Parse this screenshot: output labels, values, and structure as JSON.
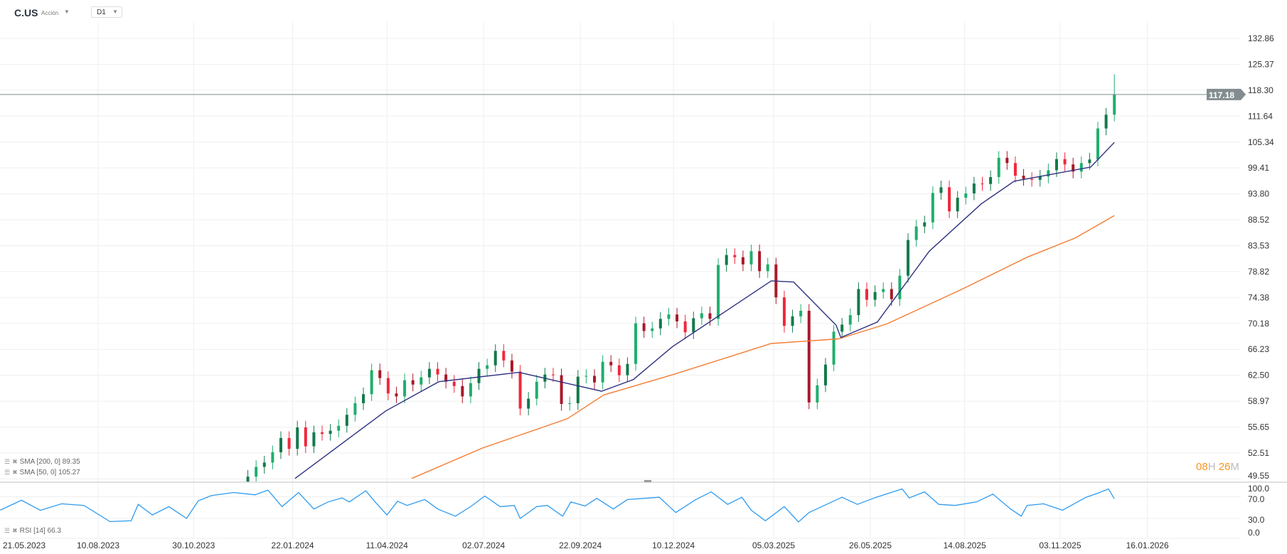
{
  "header": {
    "symbol": "C.US",
    "instrument_type": "Acción",
    "timeframe": "D1",
    "caret_icon": "caret-down-icon"
  },
  "countdown": {
    "hours": "08",
    "hours_unit": "H",
    "minutes": "26",
    "minutes_unit": "M"
  },
  "legends": {
    "sma200": {
      "label": "SMA [200,  0] 89.35"
    },
    "sma50": {
      "label": "SMA [50, 0] 105.27"
    },
    "rsi": {
      "label": "RSI  [14]  66.3"
    }
  },
  "colors": {
    "up": "#1fae6e",
    "up_dark": "#137a4a",
    "down": "#f0283c",
    "down_dark": "#a8192a",
    "sma50": "#2e3180",
    "sma200": "#f47c30",
    "rsi": "#2f9bf0",
    "price_line": "#7d8a8c",
    "price_tag": "#838d90",
    "grid": "#efefef"
  },
  "chart_data": [
    {
      "type": "candlestick",
      "scale": "log",
      "grid": true,
      "ylim": [
        49.55,
        132.86
      ],
      "y_ticks": [
        "132.86",
        "125.37",
        "118.30",
        "111.64",
        "105.34",
        "99.41",
        "93.80",
        "88.52",
        "83.53",
        "78.82",
        "74.38",
        "70.18",
        "66.23",
        "62.50",
        "58.97",
        "55.65",
        "52.51",
        "49.55"
      ],
      "x_ticks": [
        "21.05.2023",
        "10.08.2023",
        "30.10.2023",
        "22.01.2024",
        "11.04.2024",
        "02.07.2024",
        "22.09.2024",
        "10.12.2024",
        "05.03.2025",
        "26.05.2025",
        "14.08.2025",
        "03.11.2025",
        "16.01.2026"
      ],
      "last_price": "117.18",
      "last_high": 122.6,
      "weekly_close": [
        [
          "2023-12-15",
          49.8
        ],
        [
          "2023-12-22",
          50.9
        ],
        [
          "2023-12-29",
          51.4
        ],
        [
          "2024-01-05",
          52.6
        ],
        [
          "2024-01-12",
          54.3
        ],
        [
          "2024-01-19",
          53.0
        ],
        [
          "2024-01-26",
          55.6
        ],
        [
          "2024-02-02",
          53.3
        ],
        [
          "2024-02-09",
          55.0
        ],
        [
          "2024-02-16",
          54.8
        ],
        [
          "2024-02-23",
          55.2
        ],
        [
          "2024-03-01",
          55.8
        ],
        [
          "2024-03-08",
          57.2
        ],
        [
          "2024-03-15",
          58.7
        ],
        [
          "2024-03-22",
          59.9
        ],
        [
          "2024-03-29",
          63.2
        ],
        [
          "2024-04-05",
          62.1
        ],
        [
          "2024-04-12",
          60.0
        ],
        [
          "2024-04-19",
          59.6
        ],
        [
          "2024-04-26",
          61.8
        ],
        [
          "2024-05-03",
          61.2
        ],
        [
          "2024-05-10",
          62.2
        ],
        [
          "2024-05-17",
          63.4
        ],
        [
          "2024-05-24",
          62.6
        ],
        [
          "2024-05-31",
          61.6
        ],
        [
          "2024-06-07",
          61.0
        ],
        [
          "2024-06-14",
          59.6
        ],
        [
          "2024-06-21",
          61.4
        ],
        [
          "2024-06-28",
          63.4
        ],
        [
          "2024-07-05",
          63.9
        ],
        [
          "2024-07-12",
          66.0
        ],
        [
          "2024-07-19",
          64.6
        ],
        [
          "2024-07-26",
          63.0
        ],
        [
          "2024-08-02",
          58.0
        ],
        [
          "2024-08-09",
          59.3
        ],
        [
          "2024-08-16",
          61.6
        ],
        [
          "2024-08-23",
          62.6
        ],
        [
          "2024-08-30",
          62.5
        ],
        [
          "2024-09-06",
          58.6
        ],
        [
          "2024-09-13",
          58.7
        ],
        [
          "2024-09-20",
          62.3
        ],
        [
          "2024-09-27",
          62.4
        ],
        [
          "2024-10-04",
          61.5
        ],
        [
          "2024-10-11",
          64.4
        ],
        [
          "2024-10-18",
          63.9
        ],
        [
          "2024-10-25",
          62.5
        ],
        [
          "2024-11-01",
          64.1
        ],
        [
          "2024-11-08",
          70.2
        ],
        [
          "2024-11-15",
          69.0
        ],
        [
          "2024-11-22",
          69.4
        ],
        [
          "2024-11-29",
          70.9
        ],
        [
          "2024-12-06",
          71.6
        ],
        [
          "2024-12-13",
          70.5
        ],
        [
          "2024-12-20",
          68.8
        ],
        [
          "2024-12-27",
          71.0
        ],
        [
          "2025-01-03",
          71.8
        ],
        [
          "2025-01-10",
          70.9
        ],
        [
          "2025-01-17",
          80.0
        ],
        [
          "2025-01-24",
          81.8
        ],
        [
          "2025-01-31",
          81.4
        ],
        [
          "2025-02-07",
          80.1
        ],
        [
          "2025-02-14",
          82.5
        ],
        [
          "2025-02-21",
          78.9
        ],
        [
          "2025-02-28",
          80.1
        ],
        [
          "2025-03-07",
          74.4
        ],
        [
          "2025-03-14",
          69.8
        ],
        [
          "2025-03-21",
          71.3
        ],
        [
          "2025-03-28",
          72.2
        ],
        [
          "2025-04-04",
          58.8
        ],
        [
          "2025-04-11",
          61.1
        ],
        [
          "2025-04-18",
          64.0
        ],
        [
          "2025-04-25",
          68.9
        ],
        [
          "2025-05-02",
          70.0
        ],
        [
          "2025-05-09",
          71.5
        ],
        [
          "2025-05-16",
          75.8
        ],
        [
          "2025-05-23",
          74.0
        ],
        [
          "2025-05-30",
          75.3
        ],
        [
          "2025-06-06",
          75.8
        ],
        [
          "2025-06-13",
          74.1
        ],
        [
          "2025-06-20",
          78.1
        ],
        [
          "2025-06-27",
          84.6
        ],
        [
          "2025-07-04",
          87.2
        ],
        [
          "2025-07-11",
          88.0
        ],
        [
          "2025-07-18",
          94.0
        ],
        [
          "2025-07-25",
          95.2
        ],
        [
          "2025-08-01",
          90.2
        ],
        [
          "2025-08-08",
          93.0
        ],
        [
          "2025-08-15",
          93.9
        ],
        [
          "2025-08-22",
          96.0
        ],
        [
          "2025-08-29",
          95.9
        ],
        [
          "2025-09-05",
          97.4
        ],
        [
          "2025-09-12",
          101.7
        ],
        [
          "2025-09-19",
          100.5
        ],
        [
          "2025-09-26",
          97.7
        ],
        [
          "2025-10-03",
          97.0
        ],
        [
          "2025-10-10",
          96.8
        ],
        [
          "2025-10-17",
          97.5
        ],
        [
          "2025-10-24",
          98.9
        ],
        [
          "2025-10-31",
          101.4
        ],
        [
          "2025-11-07",
          100.2
        ],
        [
          "2025-11-14",
          98.6
        ],
        [
          "2025-11-21",
          100.5
        ],
        [
          "2025-11-28",
          101.3
        ],
        [
          "2025-12-05",
          108.6
        ],
        [
          "2025-12-12",
          112.0
        ],
        [
          "2025-12-19",
          117.18
        ]
      ],
      "series": [
        {
          "name": "SMA [200,  0]",
          "points": [
            [
              "2024-05-02",
              49.6
            ],
            [
              "2024-07-01",
              53.1
            ],
            [
              "2024-09-11",
              56.7
            ],
            [
              "2024-10-12",
              59.8
            ],
            [
              "2024-12-10",
              62.6
            ],
            [
              "2025-03-03",
              67.1
            ],
            [
              "2025-04-29",
              67.8
            ],
            [
              "2025-06-09",
              70.1
            ],
            [
              "2025-08-11",
              75.7
            ],
            [
              "2025-10-06",
              81.4
            ],
            [
              "2025-11-16",
              85.0
            ],
            [
              "2025-12-19",
              89.35
            ]
          ]
        },
        {
          "name": "SMA [50, 0]",
          "points": [
            [
              "2024-01-24",
              49.6
            ],
            [
              "2024-04-10",
              57.7
            ],
            [
              "2024-05-25",
              61.6
            ],
            [
              "2024-08-01",
              62.9
            ],
            [
              "2024-10-10",
              60.3
            ],
            [
              "2024-11-06",
              61.9
            ],
            [
              "2024-12-09",
              66.6
            ],
            [
              "2025-03-03",
              77.2
            ],
            [
              "2025-03-22",
              77.0
            ],
            [
              "2025-04-27",
              69.9
            ],
            [
              "2025-05-01",
              68.0
            ],
            [
              "2025-06-01",
              70.4
            ],
            [
              "2025-07-15",
              82.5
            ],
            [
              "2025-08-28",
              91.7
            ],
            [
              "2025-09-25",
              96.5
            ],
            [
              "2025-11-29",
              99.6
            ],
            [
              "2025-12-19",
              105.27
            ]
          ]
        }
      ]
    },
    {
      "type": "line",
      "ylim": [
        0,
        100
      ],
      "y_ticks": [
        "100.0",
        "70.0",
        "30.0",
        "0.0"
      ],
      "series": [
        {
          "name": "RSI  [14]",
          "points": [
            [
              "2023-05-19",
              45.2
            ],
            [
              "2023-06-06",
              63.5
            ],
            [
              "2023-06-22",
              45
            ],
            [
              "2023-07-10",
              57
            ],
            [
              "2023-07-29",
              54
            ],
            [
              "2023-08-20",
              24.3
            ],
            [
              "2023-09-07",
              25.7
            ],
            [
              "2023-09-13",
              56
            ],
            [
              "2023-09-25",
              36.5
            ],
            [
              "2023-10-09",
              51.7
            ],
            [
              "2023-10-24",
              30
            ],
            [
              "2023-11-03",
              62.6
            ],
            [
              "2023-11-14",
              72
            ],
            [
              "2023-12-03",
              77.8
            ],
            [
              "2023-12-21",
              73.5
            ],
            [
              "2024-01-01",
              82.2
            ],
            [
              "2024-01-13",
              51.7
            ],
            [
              "2024-01-27",
              77.8
            ],
            [
              "2024-02-09",
              47.4
            ],
            [
              "2024-02-21",
              60.4
            ],
            [
              "2024-03-04",
              67.8
            ],
            [
              "2024-03-10",
              60.4
            ],
            [
              "2024-03-24",
              80.9
            ],
            [
              "2024-04-01",
              60.4
            ],
            [
              "2024-04-11",
              36.5
            ],
            [
              "2024-04-20",
              61.7
            ],
            [
              "2024-04-28",
              54
            ],
            [
              "2024-05-13",
              64.8
            ],
            [
              "2024-05-24",
              47.4
            ],
            [
              "2024-06-08",
              34.3
            ],
            [
              "2024-06-21",
              51.7
            ],
            [
              "2024-07-03",
              71.3
            ],
            [
              "2024-07-16",
              51.7
            ],
            [
              "2024-07-28",
              54
            ],
            [
              "2024-08-02",
              30
            ],
            [
              "2024-08-16",
              51.7
            ],
            [
              "2024-08-25",
              54
            ],
            [
              "2024-09-07",
              34.3
            ],
            [
              "2024-09-14",
              60.4
            ],
            [
              "2024-09-26",
              53
            ],
            [
              "2024-10-06",
              67
            ],
            [
              "2024-10-20",
              47.4
            ],
            [
              "2024-11-01",
              64.8
            ],
            [
              "2024-11-28",
              69
            ],
            [
              "2024-12-12",
              40.9
            ],
            [
              "2024-12-29",
              64.8
            ],
            [
              "2025-01-11",
              79
            ],
            [
              "2025-01-25",
              56
            ],
            [
              "2025-02-06",
              69
            ],
            [
              "2025-02-14",
              45.2
            ],
            [
              "2025-02-26",
              25.7
            ],
            [
              "2025-03-14",
              51.7
            ],
            [
              "2025-03-26",
              23.5
            ],
            [
              "2025-04-04",
              40.9
            ],
            [
              "2025-04-17",
              54
            ],
            [
              "2025-05-02",
              69
            ],
            [
              "2025-05-15",
              56
            ],
            [
              "2025-05-31",
              69
            ],
            [
              "2025-06-22",
              84.3
            ],
            [
              "2025-06-28",
              67.8
            ],
            [
              "2025-07-11",
              79
            ],
            [
              "2025-07-23",
              56
            ],
            [
              "2025-08-06",
              54
            ],
            [
              "2025-08-24",
              60.4
            ],
            [
              "2025-09-07",
              74.8
            ],
            [
              "2025-09-22",
              47.4
            ],
            [
              "2025-10-01",
              34.3
            ],
            [
              "2025-10-06",
              54
            ],
            [
              "2025-10-20",
              57
            ],
            [
              "2025-11-05",
              45.2
            ],
            [
              "2025-11-25",
              69
            ],
            [
              "2025-12-05",
              76.5
            ],
            [
              "2025-12-14",
              84.3
            ],
            [
              "2025-12-19",
              66.3
            ]
          ]
        }
      ]
    }
  ]
}
